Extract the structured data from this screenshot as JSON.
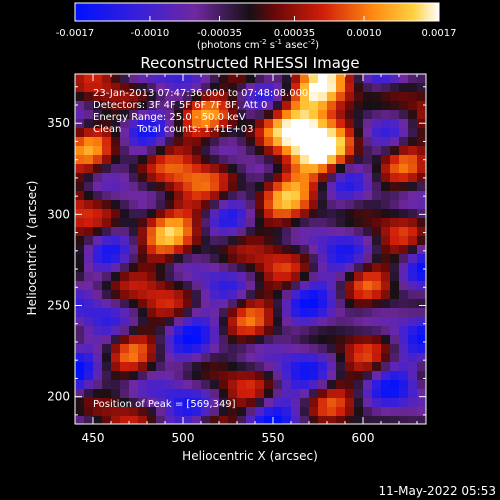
{
  "colorbar": {
    "ticks": [
      "-0.0017",
      "-0.0010",
      "-0.00035",
      "0.00035",
      "0.0010",
      "0.0017"
    ],
    "unit_base": "(photons cm",
    "unit_sup1": "-2",
    "unit_mid": " s",
    "unit_sup2": "-1",
    "unit_tail": " asec",
    "unit_sup3": "-2",
    "unit_close": ")"
  },
  "chart_data": {
    "type": "heatmap",
    "title": "Reconstructed RHESSI Image",
    "xlabel": "Heliocentric X (arcsec)",
    "ylabel": "Heliocentric Y (arcsec)",
    "xlim": [
      440,
      635
    ],
    "ylim": [
      185,
      377
    ],
    "x_ticks": [
      "450",
      "500",
      "550",
      "600"
    ],
    "y_ticks": [
      "200",
      "250",
      "300",
      "350"
    ],
    "colorbar_range": [
      -0.0017,
      0.0017
    ],
    "colormap": "hot-cold",
    "peak": [
      569,
      349
    ],
    "annotations": [
      "23-Jan-2013 07:47:36.000 to 07:48:08.000",
      "Detectors: 3F 4F 5F 6F 7F 8F, Att 0",
      "Energy Range: 25.0 - 50.0 keV",
      "Clean     Total counts: 1.41E+03"
    ],
    "peak_label": "Position of Peak = [569,349]"
  },
  "footer": {
    "date": "11-May-2022 05:53"
  }
}
